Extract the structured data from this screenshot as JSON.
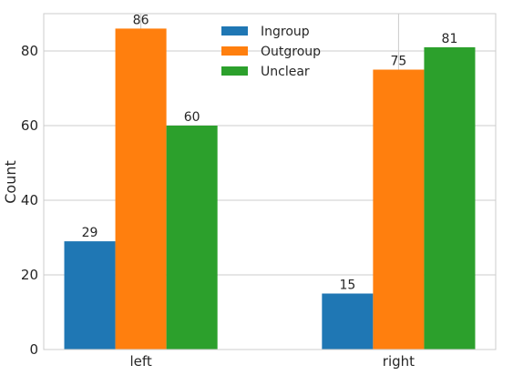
{
  "chart_data": {
    "type": "bar",
    "categories": [
      "left",
      "right"
    ],
    "series": [
      {
        "name": "Ingroup",
        "values": [
          29,
          15
        ],
        "color": "#1f77b4"
      },
      {
        "name": "Outgroup",
        "values": [
          86,
          75
        ],
        "color": "#ff7f0e"
      },
      {
        "name": "Unclear",
        "values": [
          60,
          81
        ],
        "color": "#2ca02c"
      }
    ],
    "title": "",
    "xlabel": "",
    "ylabel": "Count",
    "ylim": [
      0,
      90
    ],
    "yticks": [
      0,
      20,
      40,
      60,
      80
    ],
    "grid": true,
    "legend_position": "upper-center",
    "colors": {
      "grid": "#cccccc",
      "axis": "#cccccc",
      "background": "#ffffff"
    }
  }
}
